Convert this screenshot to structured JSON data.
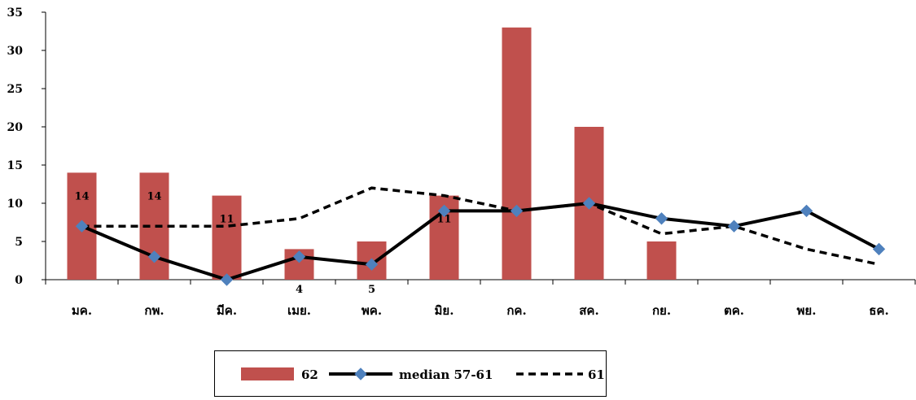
{
  "chart_data": {
    "type": "bar",
    "categories": [
      "มค.",
      "กพ.",
      "มีค.",
      "เมย.",
      "พค.",
      "มิย.",
      "กค.",
      "สค.",
      "กย.",
      "ตค.",
      "พย.",
      "ธค."
    ],
    "ylim": [
      0,
      35
    ],
    "yticks": [
      0,
      5,
      10,
      15,
      20,
      25,
      30,
      35
    ],
    "grid": false,
    "legend_position": "bottom",
    "series": [
      {
        "name": "62",
        "type": "bar",
        "color": "#c0504d",
        "values": [
          14,
          14,
          11,
          4,
          5,
          11,
          33,
          20,
          5,
          null,
          null,
          null
        ],
        "data_labels": [
          "14",
          "14",
          "11",
          "4",
          "5",
          "11",
          "",
          "",
          "",
          "",
          "",
          ""
        ]
      },
      {
        "name": "median 57-61",
        "type": "line",
        "color": "#000000",
        "marker": "diamond",
        "marker_color": "#4f81bd",
        "values": [
          7,
          3,
          0,
          3,
          2,
          9,
          9,
          10,
          8,
          7,
          9,
          4
        ]
      },
      {
        "name": "61",
        "type": "line",
        "color": "#000000",
        "dash": "dashed",
        "values": [
          7,
          7,
          7,
          8,
          12,
          11,
          9,
          10,
          6,
          7,
          4,
          2
        ]
      }
    ]
  }
}
